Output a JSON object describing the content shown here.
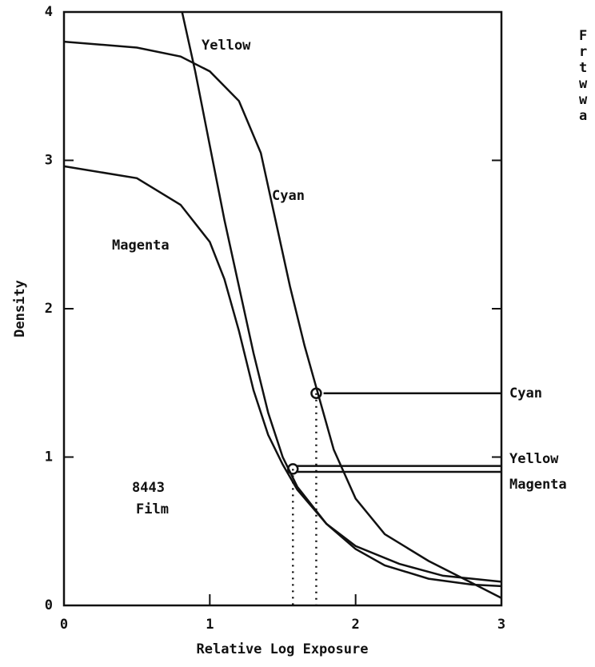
{
  "chart_data": {
    "type": "line",
    "x_label": "Relative Log Exposure",
    "y_label": "Density",
    "xlim": [
      0,
      3
    ],
    "ylim": [
      0,
      4
    ],
    "xticks": [
      0,
      1,
      2,
      3
    ],
    "yticks": [
      0,
      1,
      2,
      3,
      4
    ],
    "series": [
      {
        "name": "Yellow",
        "color": "#111",
        "x": [
          0.81,
          0.9,
          1.0,
          1.1,
          1.2,
          1.3,
          1.4,
          1.5,
          1.6,
          1.8,
          2.0,
          2.2,
          2.5,
          2.8,
          3.0
        ],
        "values": [
          4.0,
          3.6,
          3.1,
          2.6,
          2.15,
          1.7,
          1.3,
          1.0,
          0.8,
          0.55,
          0.38,
          0.27,
          0.18,
          0.14,
          0.13
        ]
      },
      {
        "name": "Cyan",
        "color": "#111",
        "x": [
          0,
          0.5,
          0.8,
          1.0,
          1.2,
          1.35,
          1.45,
          1.55,
          1.65,
          1.75,
          1.85,
          2.0,
          2.2,
          2.5,
          2.8,
          3.0
        ],
        "values": [
          3.8,
          3.76,
          3.7,
          3.6,
          3.4,
          3.05,
          2.6,
          2.15,
          1.75,
          1.4,
          1.05,
          0.72,
          0.48,
          0.3,
          0.15,
          0.05
        ]
      },
      {
        "name": "Magenta",
        "color": "#111",
        "x": [
          0,
          0.5,
          0.8,
          1.0,
          1.1,
          1.2,
          1.3,
          1.4,
          1.5,
          1.6,
          1.8,
          2.0,
          2.3,
          2.6,
          3.0
        ],
        "values": [
          2.96,
          2.88,
          2.7,
          2.45,
          2.2,
          1.85,
          1.45,
          1.15,
          0.95,
          0.78,
          0.55,
          0.4,
          0.28,
          0.2,
          0.16
        ]
      }
    ],
    "markers": [
      {
        "x": 1.73,
        "y": 1.43
      },
      {
        "x": 1.57,
        "y": 0.92
      }
    ],
    "levels": [
      {
        "label": "Cyan",
        "y": 1.43,
        "x_start": 1.78
      },
      {
        "label": "Yellow",
        "y": 0.94,
        "x_start": 1.6
      },
      {
        "label": "Magenta",
        "y": 0.9,
        "x_start": 1.6
      }
    ],
    "annotations": [
      "8443",
      "Film"
    ],
    "side_text": [
      "F",
      "r",
      "t",
      "w",
      "w",
      "a"
    ]
  }
}
